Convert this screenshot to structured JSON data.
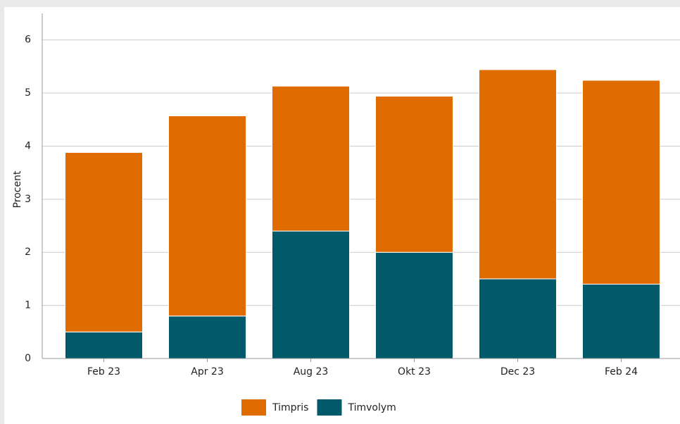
{
  "chart_data": {
    "type": "stacked-bar",
    "y_label": "Procent",
    "categories": [
      "Feb 23",
      "Apr 23",
      "Aug 23",
      "Okt 23",
      "Dec 23",
      "Feb 24"
    ],
    "series": [
      {
        "name": "Timpris",
        "color": "#e06c00",
        "values": [
          3.38,
          3.77,
          2.73,
          2.94,
          3.94,
          3.84
        ]
      },
      {
        "name": "Timvolym",
        "color": "#005a6a",
        "values": [
          0.5,
          0.8,
          2.4,
          2.0,
          1.5,
          1.4
        ]
      }
    ],
    "ylim": [
      0,
      6.5
    ],
    "yticks": [
      0,
      1,
      2,
      3,
      4,
      5,
      6
    ],
    "grid": true
  }
}
